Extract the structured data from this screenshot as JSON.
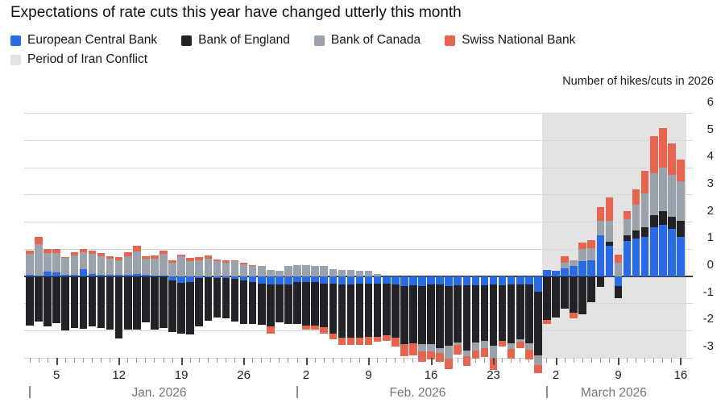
{
  "title": "Expectations of rate cuts this year have changed utterly this month",
  "axis_title": "Number of hikes/cuts in 2026",
  "legend": {
    "items": [
      {
        "label": "European Central Bank",
        "color": "#2a6ae4",
        "row": 1
      },
      {
        "label": "Bank of England",
        "color": "#232327",
        "row": 1
      },
      {
        "label": "Bank of Canada",
        "color": "#9aa2ac",
        "row": 1
      },
      {
        "label": "Swiss National Bank",
        "color": "#e7644e",
        "row": 1
      },
      {
        "label": "Period of Iran Conflict",
        "color": "#e3e3e1",
        "row": 2
      }
    ]
  },
  "chart_data": {
    "type": "bar",
    "stacked": true,
    "title": "Expectations of rate cuts this year have changed utterly this month",
    "ylabel": "Number of hikes/cuts in 2026",
    "ylim": [
      -3,
      6
    ],
    "yticks": [
      6,
      5,
      4,
      3,
      2,
      1,
      0,
      -1,
      -2,
      -3
    ],
    "grid": true,
    "zero_line": true,
    "legend_position": "top",
    "series_keys": {
      "e": "European Central Bank",
      "o": "Bank of England",
      "c": "Bank of Canada",
      "s": "Swiss National Bank"
    },
    "colors": {
      "e": "#2a6ae4",
      "o": "#232327",
      "c": "#9aa2ac",
      "s": "#e7644e",
      "iran_shading": "#e3e3e1"
    },
    "x_ticks": [
      {
        "m": "Jan",
        "d": 5
      },
      {
        "m": "Jan",
        "d": 12
      },
      {
        "m": "Jan",
        "d": 19
      },
      {
        "m": "Jan",
        "d": 26
      },
      {
        "m": "Feb",
        "d": 2
      },
      {
        "m": "Feb",
        "d": 9
      },
      {
        "m": "Feb",
        "d": 16
      },
      {
        "m": "Feb",
        "d": 23
      },
      {
        "m": "Mar",
        "d": 2
      },
      {
        "m": "Mar",
        "d": 9
      },
      {
        "m": "Mar",
        "d": 16
      }
    ],
    "months": [
      {
        "label": "Jan. 2026",
        "m": "Jan"
      },
      {
        "label": "Feb. 2026",
        "m": "Feb"
      },
      {
        "label": "March 2026",
        "m": "Mar"
      }
    ],
    "iran_period": {
      "start": {
        "m": "Mar",
        "d": 1
      },
      "end": {
        "m": "Mar",
        "d": 16
      }
    },
    "bars": [
      {
        "m": "Jan",
        "d": 2,
        "e": 0.05,
        "o": -1.8,
        "c": 0.78,
        "s": 0.13
      },
      {
        "m": "Jan",
        "d": 3,
        "e": 0.03,
        "o": -1.67,
        "c": 1.15,
        "s": 0.27
      },
      {
        "m": "Jan",
        "d": 4,
        "e": 0.18,
        "o": -1.85,
        "c": 0.68,
        "s": 0.14
      },
      {
        "m": "Jan",
        "d": 5,
        "e": 0.15,
        "o": -1.72,
        "c": 0.72,
        "s": 0.15
      },
      {
        "m": "Jan",
        "d": 6,
        "e": 0.05,
        "o": -2.0,
        "c": 0.62,
        "s": 0.05
      },
      {
        "m": "Jan",
        "d": 7,
        "e": 0.06,
        "o": -1.9,
        "c": 0.72,
        "s": 0.1
      },
      {
        "m": "Jan",
        "d": 8,
        "e": 0.28,
        "o": -1.92,
        "c": 0.6,
        "s": 0.14
      },
      {
        "m": "Jan",
        "d": 9,
        "e": 0.1,
        "o": -1.85,
        "c": 0.72,
        "s": 0.12
      },
      {
        "m": "Jan",
        "d": 10,
        "e": 0.06,
        "o": -1.9,
        "c": 0.68,
        "s": 0.12
      },
      {
        "m": "Jan",
        "d": 11,
        "e": 0.05,
        "o": -1.95,
        "c": 0.6,
        "s": 0.1
      },
      {
        "m": "Jan",
        "d": 12,
        "e": 0.05,
        "o": -2.3,
        "c": 0.55,
        "s": 0.12
      },
      {
        "m": "Jan",
        "d": 13,
        "e": 0.05,
        "o": -1.95,
        "c": 0.68,
        "s": 0.15
      },
      {
        "m": "Jan",
        "d": 14,
        "e": 0.08,
        "o": -1.95,
        "c": 0.85,
        "s": 0.2
      },
      {
        "m": "Jan",
        "d": 15,
        "e": 0.05,
        "o": -1.7,
        "c": 0.6,
        "s": 0.1
      },
      {
        "m": "Jan",
        "d": 16,
        "e": 0.04,
        "o": -1.95,
        "c": 0.62,
        "s": 0.1
      },
      {
        "m": "Jan",
        "d": 17,
        "e": 0.03,
        "o": -1.9,
        "c": 0.8,
        "s": 0.13
      },
      {
        "m": "Jan",
        "d": 18,
        "e": -0.15,
        "o": -1.9,
        "c": 0.5,
        "s": 0.1
      },
      {
        "m": "Jan",
        "d": 19,
        "e": -0.25,
        "o": -1.85,
        "c": 0.75,
        "s": 0.05
      },
      {
        "m": "Jan",
        "d": 20,
        "e": -0.2,
        "o": -1.95,
        "c": 0.55,
        "s": 0.12
      },
      {
        "m": "Jan",
        "d": 21,
        "e": -0.05,
        "o": -1.8,
        "c": 0.6,
        "s": 0.1
      },
      {
        "m": "Jan",
        "d": 22,
        "e": -0.02,
        "o": -1.6,
        "c": 0.65,
        "s": 0.12
      },
      {
        "m": "Jan",
        "d": 23,
        "e": -0.05,
        "o": -1.45,
        "c": 0.55,
        "s": 0.08
      },
      {
        "m": "Jan",
        "d": 24,
        "e": -0.05,
        "o": -1.5,
        "c": 0.5,
        "s": 0.1
      },
      {
        "m": "Jan",
        "d": 25,
        "e": -0.1,
        "o": -1.55,
        "c": 0.55,
        "s": 0.05
      },
      {
        "m": "Jan",
        "d": 26,
        "e": -0.15,
        "o": -1.6,
        "c": 0.45,
        "s": 0.05
      },
      {
        "m": "Jan",
        "d": 27,
        "e": -0.2,
        "o": -1.55,
        "c": 0.4,
        "s": 0.02
      },
      {
        "m": "Jan",
        "d": 28,
        "e": -0.27,
        "o": -1.5,
        "c": 0.4,
        "s": 0
      },
      {
        "m": "Jan",
        "d": 29,
        "e": -0.3,
        "o": -1.55,
        "c": 0.25,
        "s": -0.27
      },
      {
        "m": "Jan",
        "d": 30,
        "e": -0.3,
        "o": -1.4,
        "c": 0.22,
        "s": 0
      },
      {
        "m": "Jan",
        "d": 31,
        "e": -0.3,
        "o": -1.45,
        "c": 0.4,
        "s": 0
      },
      {
        "m": "Feb",
        "d": 1,
        "e": -0.2,
        "o": -1.55,
        "c": 0.42,
        "s": 0
      },
      {
        "m": "Feb",
        "d": 2,
        "e": -0.22,
        "o": -1.6,
        "c": 0.42,
        "s": -0.13
      },
      {
        "m": "Feb",
        "d": 3,
        "e": -0.22,
        "o": -1.6,
        "c": 0.4,
        "s": -0.15
      },
      {
        "m": "Feb",
        "d": 4,
        "e": -0.27,
        "o": -1.6,
        "c": 0.4,
        "s": -0.25
      },
      {
        "m": "Feb",
        "d": 5,
        "e": -0.27,
        "o": -1.85,
        "c": 0.27,
        "s": -0.2
      },
      {
        "m": "Feb",
        "d": 6,
        "e": -0.3,
        "o": -1.95,
        "c": 0.25,
        "s": -0.27
      },
      {
        "m": "Feb",
        "d": 7,
        "e": -0.3,
        "o": -1.95,
        "c": 0.24,
        "s": -0.28
      },
      {
        "m": "Feb",
        "d": 8,
        "e": -0.27,
        "o": -2.0,
        "c": 0.21,
        "s": -0.25
      },
      {
        "m": "Feb",
        "d": 9,
        "e": -0.27,
        "o": -1.97,
        "c": 0.2,
        "s": -0.27
      },
      {
        "m": "Feb",
        "d": 10,
        "e": -0.26,
        "o": -1.97,
        "c": 0.08,
        "s": -0.18
      },
      {
        "m": "Feb",
        "d": 11,
        "e": -0.26,
        "o": -1.9,
        "c": 0,
        "s": -0.2
      },
      {
        "m": "Feb",
        "d": 12,
        "e": -0.3,
        "o": -1.97,
        "c": 0,
        "s": -0.3
      },
      {
        "m": "Feb",
        "d": 13,
        "e": -0.35,
        "o": -2.13,
        "c": 0,
        "s": -0.45
      },
      {
        "m": "Feb",
        "d": 14,
        "e": -0.32,
        "o": -2.15,
        "c": 0,
        "s": -0.45
      },
      {
        "m": "Feb",
        "d": 15,
        "e": -0.37,
        "o": -2.13,
        "c": -0.27,
        "s": -0.38
      },
      {
        "m": "Feb",
        "d": 16,
        "e": -0.3,
        "o": -2.2,
        "c": -0.27,
        "s": -0.3
      },
      {
        "m": "Feb",
        "d": 17,
        "e": -0.3,
        "o": -2.35,
        "c": -0.18,
        "s": -0.32
      },
      {
        "m": "Feb",
        "d": 18,
        "e": -0.35,
        "o": -2.2,
        "c": -0.48,
        "s": -0.38
      },
      {
        "m": "Feb",
        "d": 19,
        "e": -0.32,
        "o": -2.1,
        "c": -0.1,
        "s": -0.35
      },
      {
        "m": "Feb",
        "d": 20,
        "e": -0.32,
        "o": -2.42,
        "c": -0.2,
        "s": -0.35
      },
      {
        "m": "Feb",
        "d": 21,
        "e": -0.32,
        "o": -2.1,
        "c": -0.3,
        "s": -0.32
      },
      {
        "m": "Feb",
        "d": 22,
        "e": -0.32,
        "o": -2.05,
        "c": -0.27,
        "s": -0.32
      },
      {
        "m": "Feb",
        "d": 23,
        "e": -0.3,
        "o": -2.25,
        "c": -0.48,
        "s": -0.4
      },
      {
        "m": "Feb",
        "d": 24,
        "e": -0.32,
        "o": -2.05,
        "c": 0,
        "s": -0.22
      },
      {
        "m": "Feb",
        "d": 25,
        "e": -0.3,
        "o": -2.15,
        "c": -0.22,
        "s": -0.37
      },
      {
        "m": "Feb",
        "d": 26,
        "e": -0.3,
        "o": -2.0,
        "c": -0.1,
        "s": -0.25
      },
      {
        "m": "Feb",
        "d": 27,
        "e": -0.3,
        "o": -2.17,
        "c": -0.22,
        "s": -0.37
      },
      {
        "m": "Feb",
        "d": 28,
        "e": -0.55,
        "o": -2.35,
        "c": -0.37,
        "s": -0.28
      },
      {
        "m": "Mar",
        "d": 1,
        "e": 0.25,
        "o": -1.6,
        "c": 0,
        "s": -0.15
      },
      {
        "m": "Mar",
        "d": 2,
        "e": 0.22,
        "o": -1.5,
        "c": 0,
        "s": 0
      },
      {
        "m": "Mar",
        "d": 3,
        "e": 0.3,
        "o": -1.2,
        "c": 0.2,
        "s": 0.25
      },
      {
        "m": "Mar",
        "d": 4,
        "e": 0.4,
        "o": -1.35,
        "c": 0.2,
        "s": -0.2
      },
      {
        "m": "Mar",
        "d": 5,
        "e": 0.55,
        "o": -1.4,
        "c": 0.45,
        "s": 0.25
      },
      {
        "m": "Mar",
        "d": 6,
        "e": 0.6,
        "o": -0.95,
        "c": 0.45,
        "s": 0.3
      },
      {
        "m": "Mar",
        "d": 7,
        "e": 1.5,
        "o": -0.4,
        "c": 0.55,
        "s": 0.5
      },
      {
        "m": "Mar",
        "d": 8,
        "e": 1.12,
        "o": 0.16,
        "c": 0.78,
        "s": 0.85
      },
      {
        "m": "Mar",
        "d": 9,
        "e": -0.35,
        "o": -0.45,
        "c": 0.5,
        "s": 0.3
      },
      {
        "m": "Mar",
        "d": 10,
        "e": 1.3,
        "o": 0.2,
        "c": 0.6,
        "s": 0.3
      },
      {
        "m": "Mar",
        "d": 11,
        "e": 1.4,
        "o": 0.3,
        "c": 0.95,
        "s": 0.55
      },
      {
        "m": "Mar",
        "d": 12,
        "e": 1.45,
        "o": 0.35,
        "c": 1.25,
        "s": 0.85
      },
      {
        "m": "Mar",
        "d": 13,
        "e": 1.8,
        "o": 0.45,
        "c": 1.55,
        "s": 1.35
      },
      {
        "m": "Mar",
        "d": 14,
        "e": 1.9,
        "o": 0.5,
        "c": 1.6,
        "s": 1.45
      },
      {
        "m": "Mar",
        "d": 15,
        "e": 1.75,
        "o": 0.45,
        "c": 1.55,
        "s": 1.15
      },
      {
        "m": "Mar",
        "d": 16,
        "e": 1.45,
        "o": 0.6,
        "c": 1.45,
        "s": 0.8
      }
    ]
  }
}
